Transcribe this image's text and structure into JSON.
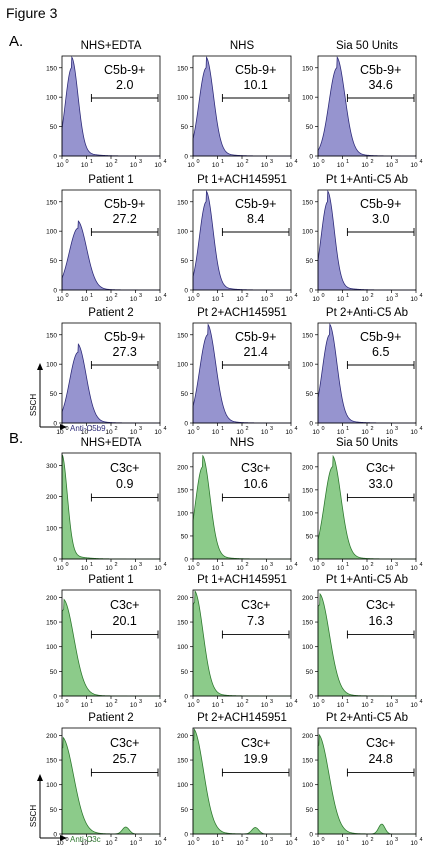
{
  "figure_title": "Figure 3",
  "colors": {
    "c5b9": "#9694cf",
    "c5b9_line": "#2f2c7a",
    "c3c": "#8ccb8a",
    "c3c_line": "#2f7a30",
    "text": "#000000"
  },
  "x_tick_labels": [
    "10",
    "0",
    "10",
    "1",
    "10",
    "2",
    "10",
    "3",
    "10",
    "4"
  ],
  "chart_data": [
    {
      "panel": "A.",
      "type": "area",
      "marker": "Anti-C5b9",
      "y_axis_label": "SSCH",
      "x_axis_label": "Anti-C5b9",
      "x_scale": "log",
      "xlim": [
        1,
        10000
      ],
      "x_ticks": [
        1,
        10,
        100,
        1000,
        10000
      ],
      "ylim": [
        0,
        170
      ],
      "y_ticks": [
        0,
        50,
        100,
        150
      ],
      "grid": false,
      "histograms": [
        {
          "title": "NHS+EDTA",
          "gate_label": "C5b-9+",
          "gate_value": "2.0",
          "mode": 2.5,
          "peak": 150,
          "spread": 0.26
        },
        {
          "title": "NHS",
          "gate_label": "C5b-9+",
          "gate_value": "10.1",
          "mode": 3.5,
          "peak": 150,
          "spread": 0.3
        },
        {
          "title": "Sia 50 Units",
          "gate_label": "C5b-9+",
          "gate_value": "34.6",
          "mode": 6.0,
          "peak": 150,
          "spread": 0.33
        },
        {
          "title": "Patient 1",
          "gate_label": "C5b-9+",
          "gate_value": "27.2",
          "mode": 4.5,
          "peak": 105,
          "spread": 0.36
        },
        {
          "title": "Pt 1+ACH145951",
          "gate_label": "C5b-9+",
          "gate_value": "8.4",
          "mode": 3.5,
          "peak": 150,
          "spread": 0.28
        },
        {
          "title": "Pt 1+Anti-C5 Ab",
          "gate_label": "C5b-9+",
          "gate_value": "3.0",
          "mode": 2.5,
          "peak": 150,
          "spread": 0.27
        },
        {
          "title": "Patient 2",
          "gate_label": "C5b-9+",
          "gate_value": "27.3",
          "mode": 4.5,
          "peak": 120,
          "spread": 0.34
        },
        {
          "title": "Pt 2+ACH145951",
          "gate_label": "C5b-9+",
          "gate_value": "21.4",
          "mode": 4.0,
          "peak": 150,
          "spread": 0.33
        },
        {
          "title": "Pt 2+Anti-C5 Ab",
          "gate_label": "C5b-9+",
          "gate_value": "6.5",
          "mode": 3.0,
          "peak": 150,
          "spread": 0.3
        }
      ],
      "histogram_y_ticks": [
        [
          0,
          50,
          100,
          150
        ],
        [
          0,
          50,
          100,
          150
        ],
        [
          0,
          50,
          100,
          150
        ],
        [
          0,
          50,
          100,
          150
        ],
        [
          0,
          50,
          100,
          150
        ],
        [
          0,
          50,
          100,
          150
        ],
        [
          0,
          50,
          100,
          150
        ],
        [
          0,
          50,
          100,
          150
        ],
        [
          0,
          50,
          100,
          150
        ]
      ]
    },
    {
      "panel": "B.",
      "type": "area",
      "marker": "Anti-C3c",
      "y_axis_label": "SSCH",
      "x_axis_label": "Anti-C3c",
      "x_scale": "log",
      "xlim": [
        1,
        10000
      ],
      "x_ticks": [
        1,
        10,
        100,
        1000,
        10000
      ],
      "grid": false,
      "histograms": [
        {
          "title": "NHS+EDTA",
          "gate_label": "C3c+",
          "gate_value": "0.9",
          "mode": 1.0,
          "peak": 300,
          "spread": 0.22,
          "ylim": [
            0,
            340
          ]
        },
        {
          "title": "NHS",
          "gate_label": "C3c+",
          "gate_value": "10.6",
          "mode": 2.5,
          "peak": 200,
          "spread": 0.3,
          "ylim": [
            0,
            230
          ]
        },
        {
          "title": "Sia 50 Units",
          "gate_label": "C3c+",
          "gate_value": "33.0",
          "mode": 4.0,
          "peak": 200,
          "spread": 0.34,
          "ylim": [
            0,
            230
          ]
        },
        {
          "title": "Patient 1",
          "gate_label": "C3c+",
          "gate_value": "20.1",
          "mode": 1.2,
          "peak": 175,
          "spread": 0.42,
          "ylim": [
            0,
            215
          ]
        },
        {
          "title": "Pt 1+ACH145951",
          "gate_label": "C3c+",
          "gate_value": "7.3",
          "mode": 1.2,
          "peak": 190,
          "spread": 0.34,
          "ylim": [
            0,
            215
          ]
        },
        {
          "title": "Pt 1+Anti-C5 Ab",
          "gate_label": "C3c+",
          "gate_value": "16.3",
          "mode": 1.2,
          "peak": 185,
          "spread": 0.4,
          "ylim": [
            0,
            215
          ]
        },
        {
          "title": "Patient 2",
          "gate_label": "C3c+",
          "gate_value": "25.7",
          "mode": 1.1,
          "peak": 175,
          "spread": 0.45,
          "ylim": [
            0,
            215
          ],
          "bump": {
            "mode": 400,
            "peak": 14,
            "spread": 0.14
          }
        },
        {
          "title": "Pt 2+ACH145951",
          "gate_label": "C3c+",
          "gate_value": "19.9",
          "mode": 1.1,
          "peak": 190,
          "spread": 0.4,
          "ylim": [
            0,
            215
          ],
          "bump": {
            "mode": 350,
            "peak": 13,
            "spread": 0.14
          }
        },
        {
          "title": "Pt 2+Anti-C5 Ab",
          "gate_label": "C3c+",
          "gate_value": "24.8",
          "mode": 1.1,
          "peak": 180,
          "spread": 0.42,
          "ylim": [
            0,
            215
          ],
          "bump": {
            "mode": 400,
            "peak": 20,
            "spread": 0.13
          }
        }
      ],
      "histogram_y_ticks": [
        [
          0,
          100,
          200,
          300
        ],
        [
          0,
          50,
          100,
          150,
          200
        ],
        [
          0,
          50,
          100,
          150,
          200
        ],
        [
          0,
          50,
          100,
          150,
          200
        ],
        [
          0,
          50,
          100,
          150,
          200
        ],
        [
          0,
          50,
          100,
          150,
          200
        ],
        [
          0,
          50,
          100,
          150,
          200
        ],
        [
          0,
          50,
          100,
          150,
          200
        ],
        [
          0,
          50,
          100,
          150,
          200
        ]
      ]
    }
  ]
}
